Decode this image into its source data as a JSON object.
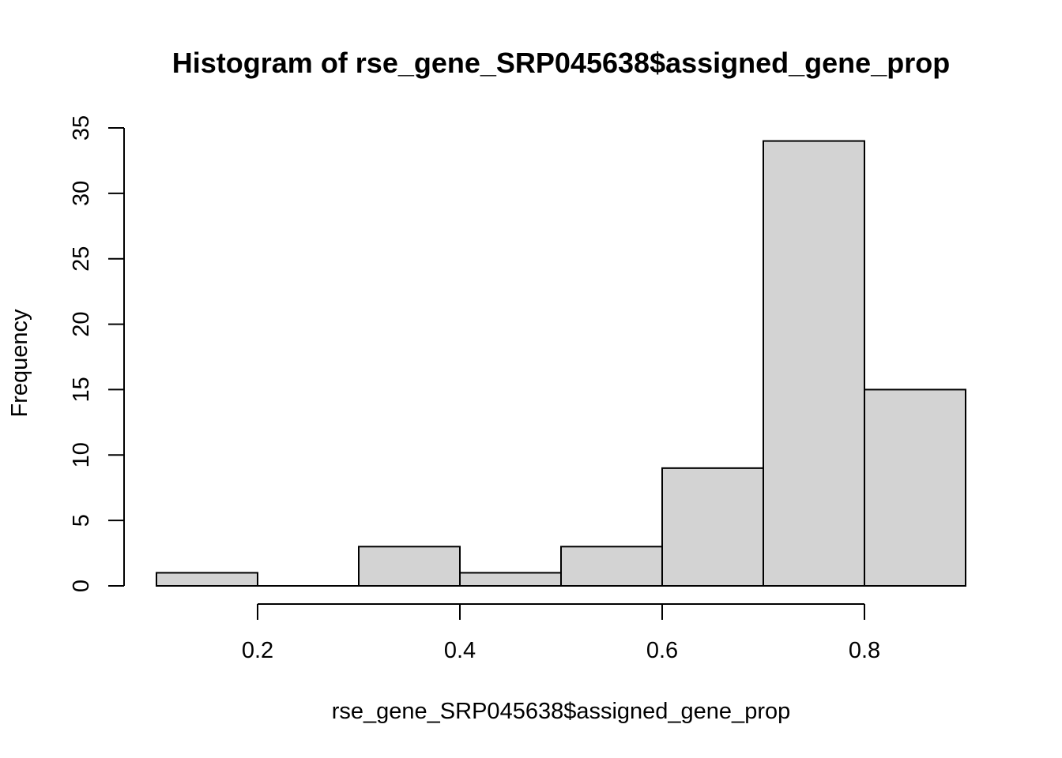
{
  "chart_data": {
    "type": "bar",
    "subtype": "histogram",
    "title": "Histogram of rse_gene_SRP045638$assigned_gene_prop",
    "xlabel": "rse_gene_SRP045638$assigned_gene_prop",
    "ylabel": "Frequency",
    "bins": [
      {
        "start": 0.1,
        "end": 0.2,
        "count": 1
      },
      {
        "start": 0.2,
        "end": 0.3,
        "count": 0
      },
      {
        "start": 0.3,
        "end": 0.4,
        "count": 3
      },
      {
        "start": 0.4,
        "end": 0.5,
        "count": 1
      },
      {
        "start": 0.5,
        "end": 0.6,
        "count": 3
      },
      {
        "start": 0.6,
        "end": 0.7,
        "count": 9
      },
      {
        "start": 0.7,
        "end": 0.8,
        "count": 34
      },
      {
        "start": 0.8,
        "end": 0.9,
        "count": 15
      }
    ],
    "xlim": [
      0.1,
      0.9
    ],
    "ylim": [
      0,
      35
    ],
    "x_ticks": [
      0.2,
      0.4,
      0.6,
      0.8
    ],
    "x_tick_labels": [
      "0.2",
      "0.4",
      "0.6",
      "0.8"
    ],
    "y_ticks": [
      0,
      5,
      10,
      15,
      20,
      25,
      30,
      35
    ],
    "y_tick_labels": [
      "0",
      "5",
      "10",
      "15",
      "20",
      "25",
      "30",
      "35"
    ],
    "bar_color": "#d3d3d3",
    "edge_color": "#000000",
    "grid": false,
    "legend": "none"
  }
}
